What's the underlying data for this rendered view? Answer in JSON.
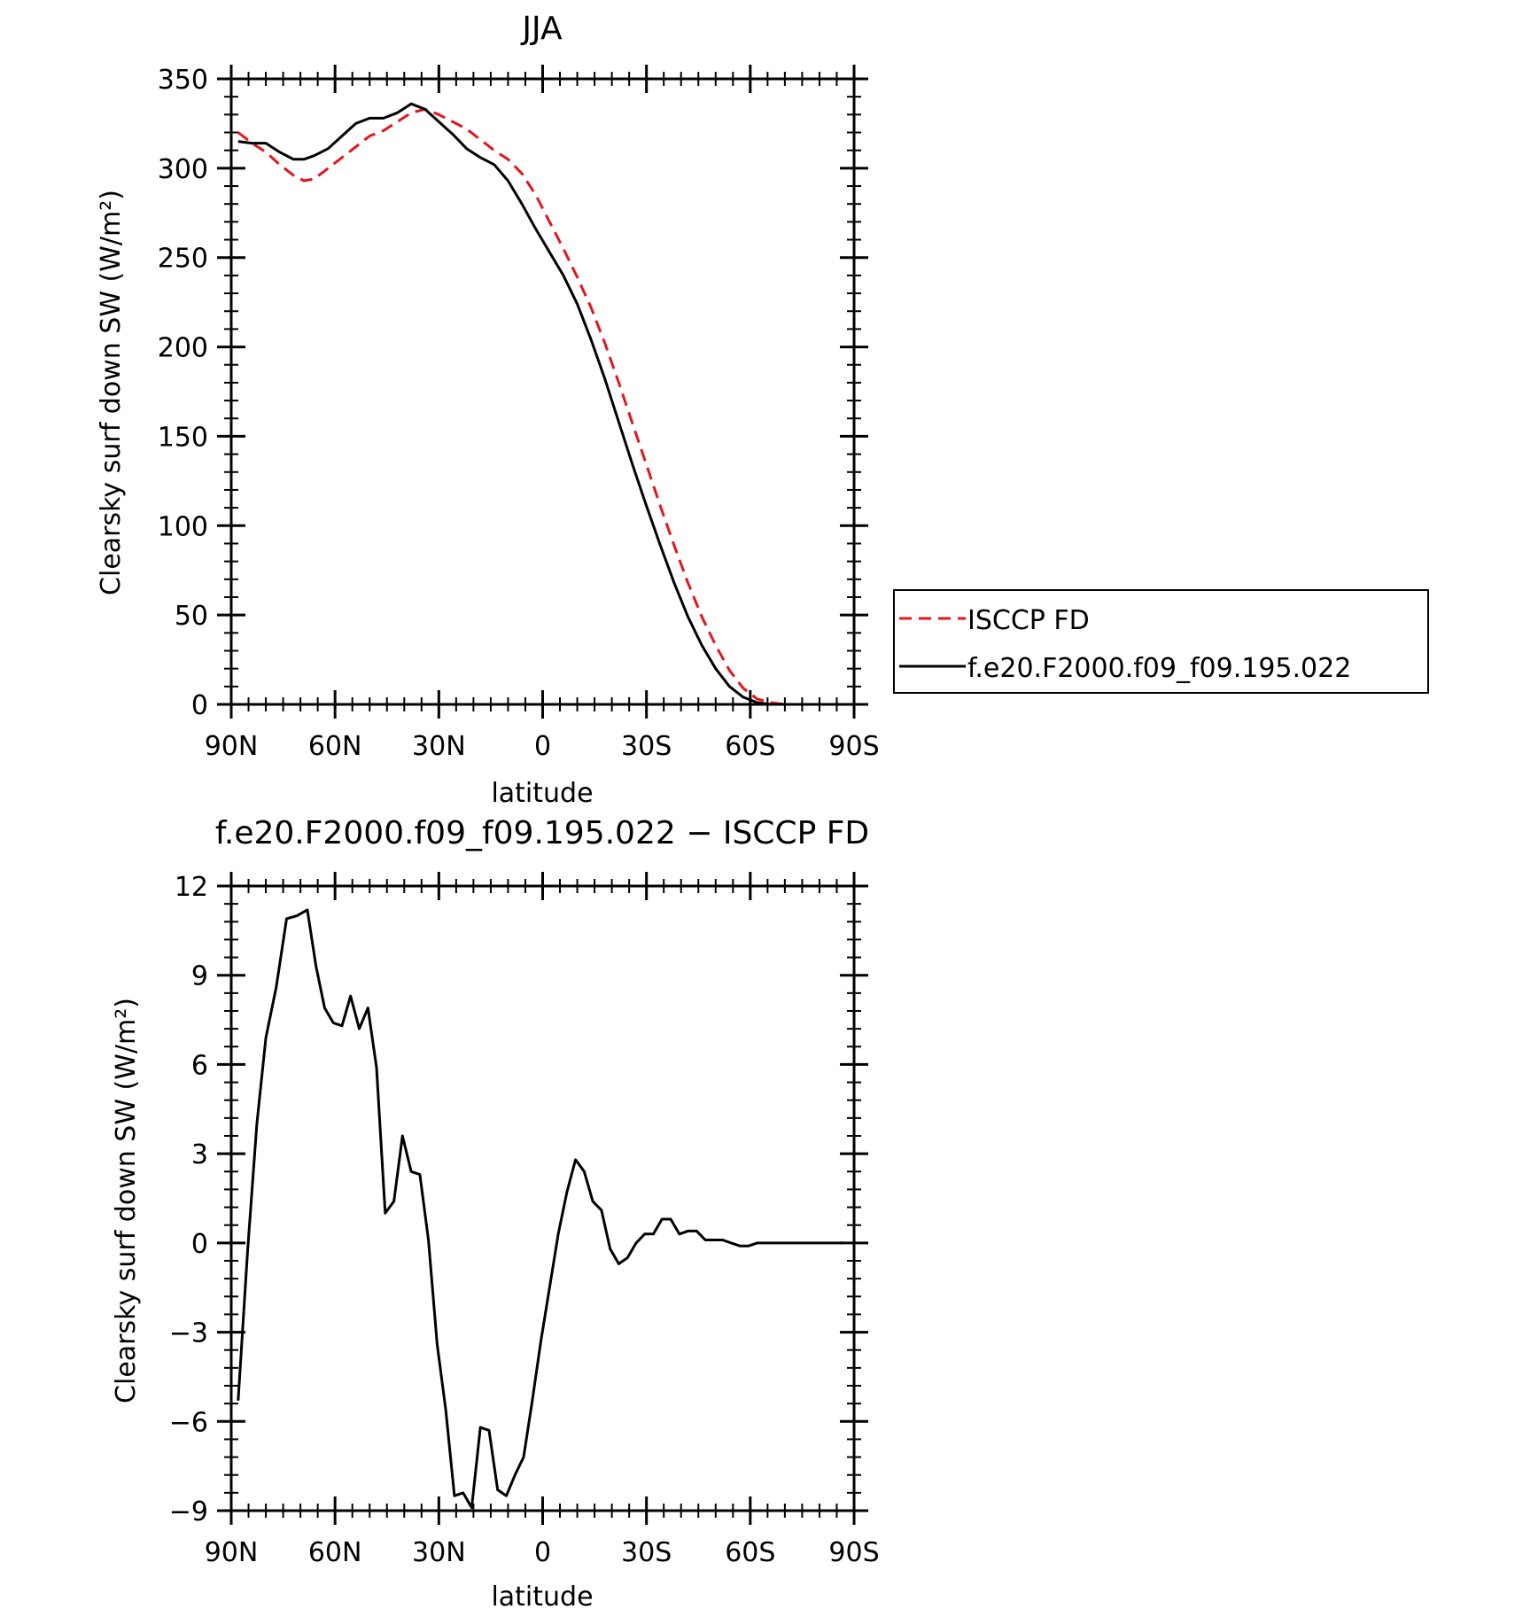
{
  "chart_data": [
    {
      "type": "line",
      "title": "JJA",
      "xlabel": "latitude",
      "ylabel": "Clearsky surf down SW (W/m²)",
      "xlim": [
        90,
        -90
      ],
      "ylim": [
        0,
        350
      ],
      "xticks": [
        90,
        60,
        30,
        0,
        -30,
        -60,
        -90
      ],
      "xtick_labels": [
        "90N",
        "60N",
        "30N",
        "0",
        "30S",
        "60S",
        "90S"
      ],
      "yticks": [
        0,
        50,
        100,
        150,
        200,
        250,
        300,
        350
      ],
      "ytick_labels": [
        "0",
        "50",
        "100",
        "150",
        "200",
        "250",
        "300",
        "350"
      ],
      "grid": false,
      "legend": "right",
      "series": [
        {
          "name": "ISCCP FD",
          "color": "#e8141c",
          "dash": "dashed",
          "x": [
            88,
            84,
            80,
            76,
            72,
            69,
            66,
            62,
            58,
            54,
            50,
            46,
            42,
            38,
            34,
            30,
            26,
            22,
            18,
            14,
            10,
            6,
            2,
            -2,
            -6,
            -10,
            -14,
            -18,
            -22,
            -26,
            -30,
            -34,
            -38,
            -42,
            -46,
            -50,
            -54,
            -58,
            -62,
            -66,
            -70,
            -74,
            -78,
            -82,
            -86
          ],
          "values": [
            320,
            314,
            309,
            302,
            296,
            293,
            294,
            300,
            306,
            312,
            318,
            321,
            326,
            331,
            333,
            330,
            326,
            322,
            316,
            310,
            305,
            297,
            285,
            270,
            255,
            239,
            222,
            202,
            180,
            157,
            134,
            111,
            89,
            68,
            49,
            33,
            19,
            9,
            3,
            1,
            0,
            0,
            0,
            0,
            0
          ]
        },
        {
          "name": "f.e20.F2000.f09_f09.195.022",
          "color": "#000000",
          "dash": "solid",
          "x": [
            88,
            84,
            80,
            76,
            72,
            69,
            66,
            62,
            58,
            54,
            50,
            46,
            42,
            38,
            34,
            30,
            26,
            22,
            18,
            14,
            10,
            6,
            2,
            -2,
            -6,
            -10,
            -14,
            -18,
            -22,
            -26,
            -30,
            -34,
            -38,
            -42,
            -46,
            -50,
            -54,
            -58,
            -62,
            -66,
            -70,
            -74,
            -78,
            -82,
            -86
          ],
          "values": [
            315,
            314,
            314,
            309,
            305,
            305,
            307,
            311,
            318,
            325,
            328,
            328,
            331,
            336,
            333,
            326,
            319,
            311,
            306,
            302,
            293,
            280,
            266,
            253,
            240,
            224,
            204,
            182,
            158,
            134,
            111,
            89,
            68,
            49,
            33,
            20,
            10,
            4,
            1,
            0,
            0,
            0,
            0,
            0,
            0
          ]
        }
      ]
    },
    {
      "type": "line",
      "title": "f.e20.F2000.f09_f09.195.022 − ISCCP FD",
      "xlabel": "latitude",
      "ylabel": "Clearsky surf down SW (W/m²)",
      "xlim": [
        90,
        -90
      ],
      "ylim": [
        -9,
        12
      ],
      "xticks": [
        90,
        60,
        30,
        0,
        -30,
        -60,
        -90
      ],
      "xtick_labels": [
        "90N",
        "60N",
        "30N",
        "0",
        "30S",
        "60S",
        "90S"
      ],
      "yticks": [
        -9,
        -6,
        -3,
        0,
        3,
        6,
        9,
        12
      ],
      "ytick_labels": [
        "−9",
        "−6",
        "−3",
        "0",
        "3",
        "6",
        "9",
        "12"
      ],
      "grid": false,
      "series": [
        {
          "color": "#000000",
          "dash": "solid",
          "x": [
            88,
            85.3,
            82.6,
            80,
            77,
            74,
            71,
            68,
            65.5,
            63,
            60.5,
            58,
            55.5,
            53,
            50.5,
            48,
            45.5,
            43,
            40.5,
            38,
            35.5,
            33,
            30.5,
            28,
            25.5,
            23,
            20.5,
            18,
            15.5,
            13,
            10.5,
            8,
            5.5,
            3,
            0.5,
            -2,
            -4.5,
            -7,
            -9.5,
            -12,
            -14.5,
            -17,
            -19.5,
            -22,
            -24.5,
            -27,
            -29.5,
            -32,
            -34.5,
            -37,
            -39.5,
            -42,
            -44.5,
            -47,
            -49.5,
            -52,
            -54.5,
            -57,
            -59.5,
            -62,
            -64.5,
            -67,
            -69.5,
            -72,
            -74.5,
            -77,
            -79.5,
            -82,
            -84.5,
            -87
          ],
          "values": [
            -5.3,
            -0.3,
            4.0,
            6.9,
            8.6,
            10.9,
            11.0,
            11.2,
            9.3,
            7.9,
            7.4,
            7.3,
            8.3,
            7.2,
            7.9,
            5.9,
            1.0,
            1.4,
            3.6,
            2.4,
            2.3,
            0.1,
            -3.4,
            -5.6,
            -8.5,
            -8.4,
            -8.9,
            -6.2,
            -6.3,
            -8.3,
            -8.5,
            -7.8,
            -7.2,
            -5.3,
            -3.3,
            -1.5,
            0.3,
            1.7,
            2.8,
            2.4,
            1.4,
            1.1,
            -0.2,
            -0.7,
            -0.5,
            0.0,
            0.3,
            0.3,
            0.8,
            0.8,
            0.3,
            0.4,
            0.4,
            0.1,
            0.1,
            0.1,
            0.0,
            -0.1,
            -0.1,
            0.0,
            0.0,
            0.0,
            0.0,
            0.0,
            0.0,
            0.0,
            0.0,
            0.0,
            0.0,
            0.0
          ]
        }
      ]
    }
  ]
}
